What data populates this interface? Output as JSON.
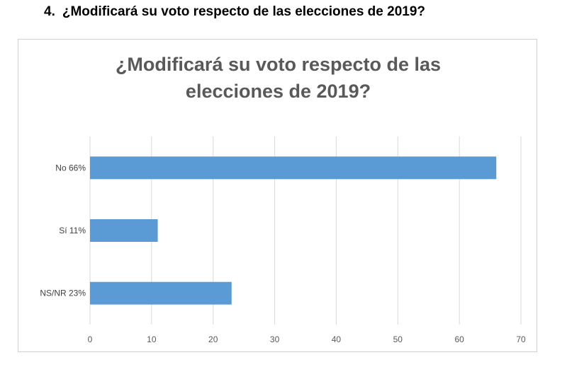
{
  "question": {
    "number": "4.",
    "text": "¿Modificará su voto respecto de las elecciones de 2019?"
  },
  "chart_data": {
    "type": "bar",
    "orientation": "horizontal",
    "title_lines": [
      "¿Modificará su voto respecto de las",
      "elecciones de 2019?"
    ],
    "categories": [
      "No  66%",
      "Sí  11%",
      "NS/NR  23%"
    ],
    "values": [
      66,
      11,
      23
    ],
    "xlim": [
      0,
      70
    ],
    "xticks": [
      0,
      10,
      20,
      30,
      40,
      50,
      60,
      70
    ],
    "grid": true,
    "bar_color": "#5b9bd5",
    "xlabel": "",
    "ylabel": ""
  }
}
